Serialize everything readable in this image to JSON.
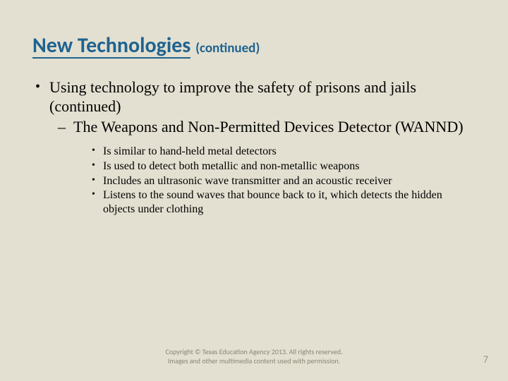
{
  "title": {
    "main": "New Technologies",
    "suffix": "(continued)"
  },
  "bullets": {
    "l1": "Using technology to improve the safety of prisons and jails (continued)",
    "l2": "The Weapons and Non-Permitted Devices Detector (WANND)",
    "l3": [
      "Is similar to hand-held metal detectors",
      "Is used to detect both metallic and non-metallic weapons",
      "Includes an ultrasonic wave transmitter and an acoustic receiver",
      "Listens to the sound waves that bounce back to it, which detects the hidden objects under clothing"
    ]
  },
  "footer": {
    "line1": "Copyright © Texas Education Agency 2013. All rights reserved.",
    "line2": "Images and other multimedia content used with permission."
  },
  "page_number": "7",
  "colors": {
    "background": "#e3e0d1",
    "heading": "#1f6390",
    "body_text": "#000000",
    "footer_text": "#8a8673"
  }
}
